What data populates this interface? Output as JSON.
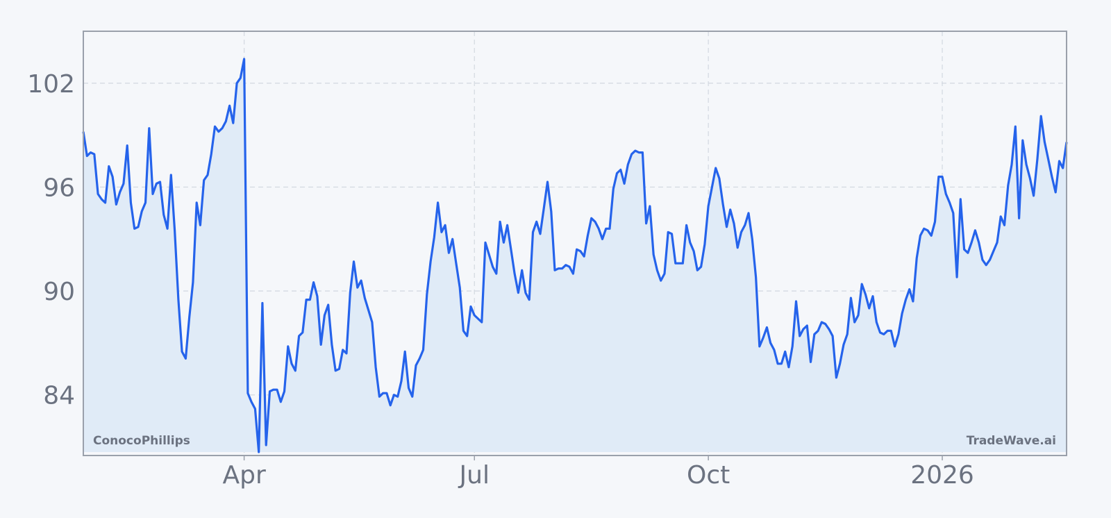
{
  "chart_data": {
    "type": "area",
    "title": "",
    "xlabel": "",
    "ylabel": "",
    "series": [
      {
        "color": "#2563eb",
        "fill": "#e0ebf7",
        "values": [
          99.2,
          97.8,
          98.0,
          97.9,
          95.6,
          95.3,
          95.1,
          97.2,
          96.6,
          95.0,
          95.7,
          96.2,
          98.4,
          95.1,
          93.6,
          93.7,
          94.6,
          95.1,
          99.4,
          95.6,
          96.2,
          96.3,
          94.4,
          93.6,
          96.7,
          93.5,
          89.5,
          86.5,
          86.1,
          88.5,
          90.5,
          95.1,
          93.8,
          96.4,
          96.7,
          97.9,
          99.5,
          99.2,
          99.4,
          99.8,
          100.7,
          99.7,
          102.0,
          102.3,
          103.4,
          84.1,
          83.6,
          83.2,
          80.7,
          89.3,
          81.1,
          84.2,
          84.3,
          84.3,
          83.6,
          84.2,
          86.8,
          85.8,
          85.4,
          87.4,
          87.6,
          89.5,
          89.5,
          90.5,
          89.7,
          86.9,
          88.6,
          89.2,
          86.9,
          85.4,
          85.5,
          86.6,
          86.4,
          89.9,
          91.7,
          90.2,
          90.6,
          89.6,
          88.9,
          88.2,
          85.6,
          83.9,
          84.1,
          84.1,
          83.4,
          84.0,
          83.9,
          84.8,
          86.5,
          84.4,
          83.9,
          85.7,
          86.1,
          86.6,
          89.8,
          91.7,
          93.1,
          95.1,
          93.4,
          93.8,
          92.2,
          93.0,
          91.6,
          90.2,
          87.7,
          87.4,
          89.1,
          88.6,
          88.4,
          88.2,
          92.8,
          92.1,
          91.4,
          91.0,
          94.0,
          92.8,
          93.8,
          92.4,
          91.0,
          89.9,
          91.2,
          89.9,
          89.5,
          93.4,
          94.0,
          93.3,
          94.8,
          96.3,
          94.6,
          91.2,
          91.3,
          91.3,
          91.5,
          91.4,
          91.0,
          92.4,
          92.3,
          92.0,
          93.2,
          94.2,
          94.0,
          93.6,
          93.0,
          93.6,
          93.6,
          95.9,
          96.8,
          97.0,
          96.2,
          97.3,
          97.9,
          98.1,
          98.0,
          98.0,
          93.9,
          94.9,
          92.1,
          91.2,
          90.6,
          91.0,
          93.4,
          93.3,
          91.6,
          91.6,
          91.6,
          93.8,
          92.8,
          92.3,
          91.2,
          91.4,
          92.7,
          94.9,
          96.0,
          97.1,
          96.5,
          95.0,
          93.7,
          94.7,
          93.9,
          92.5,
          93.4,
          93.8,
          94.5,
          93.0,
          90.8,
          86.8,
          87.3,
          87.9,
          87.0,
          86.6,
          85.8,
          85.8,
          86.5,
          85.6,
          86.8,
          89.4,
          87.4,
          87.8,
          88.0,
          85.9,
          87.5,
          87.7,
          88.2,
          88.1,
          87.8,
          87.4,
          85.0,
          85.8,
          86.9,
          87.5,
          89.6,
          88.2,
          88.6,
          90.4,
          89.8,
          89.0,
          89.7,
          88.2,
          87.6,
          87.5,
          87.7,
          87.7,
          86.8,
          87.5,
          88.7,
          89.5,
          90.1,
          89.4,
          91.9,
          93.2,
          93.6,
          93.5,
          93.2,
          94.0,
          96.6,
          96.6,
          95.6,
          95.1,
          94.5,
          90.8,
          95.3,
          92.4,
          92.2,
          92.8,
          93.5,
          92.8,
          91.8,
          91.5,
          91.8,
          92.3,
          92.8,
          94.3,
          93.8,
          96.1,
          97.3,
          99.5,
          94.2,
          98.7,
          97.3,
          96.5,
          95.5,
          97.6,
          100.1,
          98.6,
          97.6,
          96.6,
          95.7,
          97.5,
          97.1,
          98.6
        ]
      }
    ],
    "x_ticks": [
      {
        "label": "Apr",
        "index": 44
      },
      {
        "label": "Jul",
        "index": 107
      },
      {
        "label": "Oct",
        "index": 171
      },
      {
        "label": "2026",
        "index": 235
      }
    ],
    "y_ticks": [
      84,
      90,
      96,
      102
    ],
    "ylim": [
      80.5,
      105.0
    ],
    "grid": true
  },
  "watermarks": {
    "left": "ConocoPhillips",
    "right": "TradeWave.ai"
  }
}
